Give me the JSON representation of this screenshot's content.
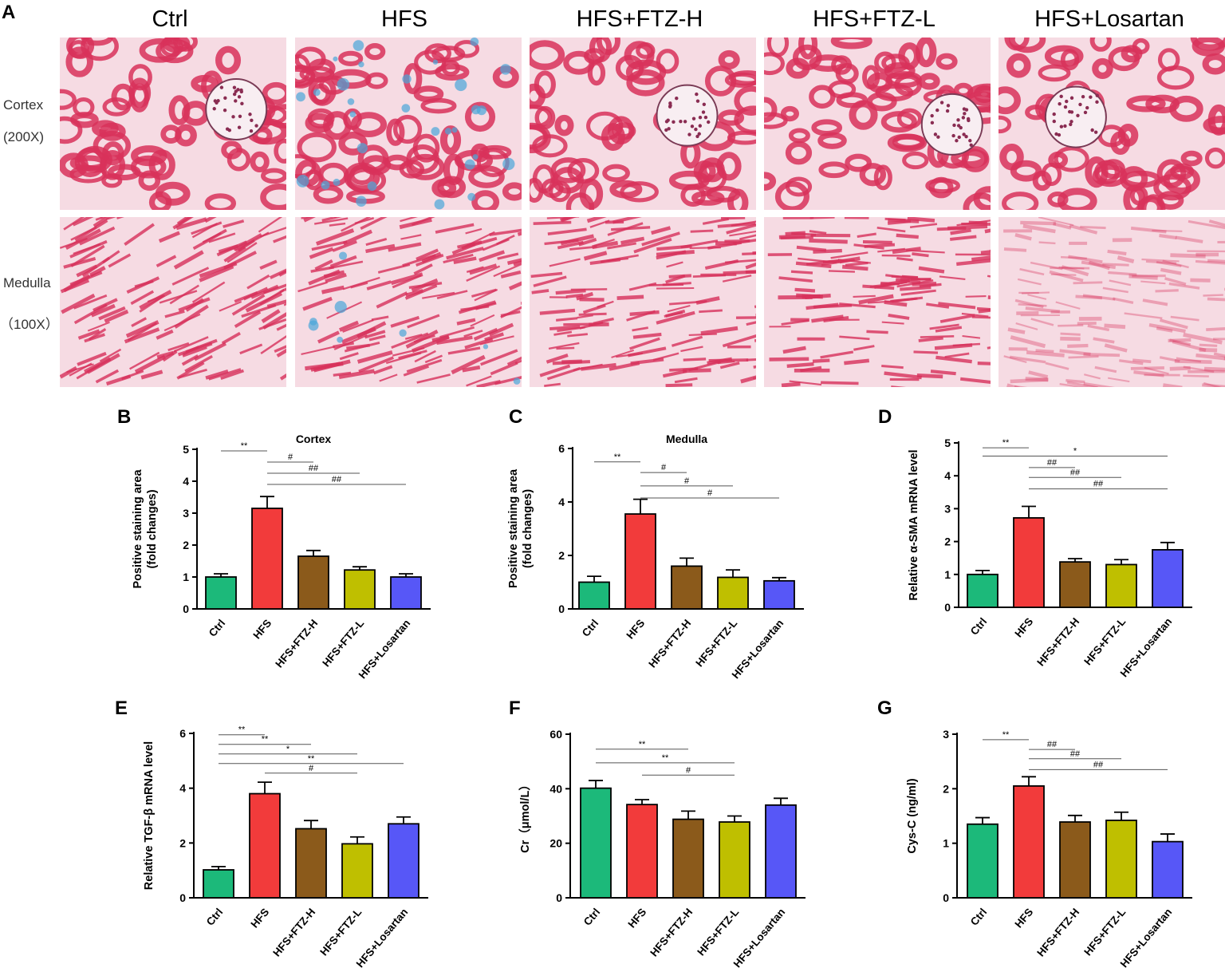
{
  "panel_a": {
    "letter": "A",
    "columns": [
      "Ctrl",
      "HFS",
      "HFS+FTZ-H",
      "HFS+FTZ-L",
      "HFS+Losartan"
    ],
    "rows": [
      {
        "name": "Cortex",
        "mag": "(200X)"
      },
      {
        "name": "Medulla",
        "mag": "（100X）"
      }
    ],
    "stain_colors": {
      "tissue": "#d8315b",
      "background": "#f6dbe3",
      "collagen": "#4aa6d8"
    }
  },
  "group_colors": [
    "#1cb97a",
    "#f23b3b",
    "#8b5a1b",
    "#bfbf00",
    "#5757f7"
  ],
  "chart_data": [
    {
      "letter": "B",
      "type": "bar",
      "title": "Cortex",
      "ylabel": "Positive staining area (fold changes)",
      "ylabel_lines": [
        "Positive staining area",
        "(fold changes)"
      ],
      "categories": [
        "Ctrl",
        "HFS",
        "HFS+FTZ-H",
        "HFS+FTZ-L",
        "HFS+Losartan"
      ],
      "values": [
        1.0,
        3.15,
        1.65,
        1.22,
        1.0
      ],
      "errors": [
        0.1,
        0.37,
        0.18,
        0.1,
        0.1
      ],
      "ylim": [
        0,
        5
      ],
      "yticks": [
        0,
        1,
        2,
        3,
        4,
        5
      ],
      "annotations": [
        {
          "from": 0,
          "to": 1,
          "level": 4.95,
          "label": "**"
        },
        {
          "from": 1,
          "to": 2,
          "level": 4.6,
          "label": "#"
        },
        {
          "from": 1,
          "to": 3,
          "level": 4.25,
          "label": "##"
        },
        {
          "from": 1,
          "to": 4,
          "level": 3.9,
          "label": "##"
        }
      ]
    },
    {
      "letter": "C",
      "type": "bar",
      "title": "Medulla",
      "ylabel": "Positive staining area (fold changes)",
      "ylabel_lines": [
        "Positive staining area",
        "(fold changes)"
      ],
      "categories": [
        "Ctrl",
        "HFS",
        "HFS+FTZ-H",
        "HFS+FTZ-L",
        "HFS+Losartan"
      ],
      "values": [
        1.0,
        3.55,
        1.6,
        1.18,
        1.05
      ],
      "errors": [
        0.22,
        0.55,
        0.3,
        0.28,
        0.12
      ],
      "ylim": [
        0,
        6
      ],
      "yticks": [
        0,
        2,
        4,
        6
      ],
      "annotations": [
        {
          "from": 0,
          "to": 1,
          "level": 5.5,
          "label": "**"
        },
        {
          "from": 1,
          "to": 2,
          "level": 5.1,
          "label": "#"
        },
        {
          "from": 1,
          "to": 3,
          "level": 4.6,
          "label": "#"
        },
        {
          "from": 1,
          "to": 4,
          "level": 4.15,
          "label": "#"
        }
      ]
    },
    {
      "letter": "D",
      "type": "bar",
      "title": "",
      "ylabel": "Relative α-SMA mRNA level",
      "ylabel_lines": [
        "Relative α-SMA mRNA level"
      ],
      "categories": [
        "Ctrl",
        "HFS",
        "HFS+FTZ-H",
        "HFS+FTZ-L",
        "HFS+Losartan"
      ],
      "values": [
        1.0,
        2.72,
        1.38,
        1.3,
        1.75
      ],
      "errors": [
        0.12,
        0.35,
        0.1,
        0.15,
        0.22
      ],
      "ylim": [
        0,
        5
      ],
      "yticks": [
        0,
        1,
        2,
        3,
        4,
        5
      ],
      "annotations": [
        {
          "from": 0,
          "to": 1,
          "level": 4.85,
          "label": "**"
        },
        {
          "from": 0,
          "to": 4,
          "level": 4.6,
          "label": "*"
        },
        {
          "from": 1,
          "to": 2,
          "level": 4.25,
          "label": "##"
        },
        {
          "from": 1,
          "to": 3,
          "level": 3.95,
          "label": "##"
        },
        {
          "from": 1,
          "to": 4,
          "level": 3.6,
          "label": "##"
        }
      ]
    },
    {
      "letter": "E",
      "type": "bar",
      "title": "",
      "ylabel": "Relative TGF-β mRNA level",
      "ylabel_lines": [
        "Relative TGF-β mRNA level"
      ],
      "categories": [
        "Ctrl",
        "HFS",
        "HFS+FTZ-H",
        "HFS+FTZ-L",
        "HFS+Losartan"
      ],
      "values": [
        1.02,
        3.8,
        2.52,
        1.97,
        2.7
      ],
      "errors": [
        0.12,
        0.42,
        0.3,
        0.25,
        0.25
      ],
      "ylim": [
        0,
        6
      ],
      "yticks": [
        0,
        2,
        4,
        6
      ],
      "annotations": [
        {
          "from": 0,
          "to": 1,
          "level": 5.95,
          "label": "**"
        },
        {
          "from": 0,
          "to": 2,
          "level": 5.6,
          "label": "**"
        },
        {
          "from": 0,
          "to": 3,
          "level": 5.25,
          "label": "*"
        },
        {
          "from": 0,
          "to": 4,
          "level": 4.9,
          "label": "**"
        },
        {
          "from": 1,
          "to": 3,
          "level": 4.55,
          "label": "#"
        }
      ]
    },
    {
      "letter": "F",
      "type": "bar",
      "title": "",
      "ylabel": "Cr（μmol/L）",
      "ylabel_lines": [
        "Cr（μmol/L）"
      ],
      "categories": [
        "Ctrl",
        "HFS",
        "HFS+FTZ-H",
        "HFS+FTZ-L",
        "HFS+Losartan"
      ],
      "values": [
        40.2,
        34.2,
        28.8,
        27.8,
        34.0
      ],
      "errors": [
        2.8,
        1.8,
        3.0,
        2.2,
        2.5
      ],
      "ylim": [
        0,
        60
      ],
      "yticks": [
        0,
        20,
        40,
        60
      ],
      "annotations": [
        {
          "from": 0,
          "to": 2,
          "level": 54.5,
          "label": "**"
        },
        {
          "from": 0,
          "to": 3,
          "level": 49.5,
          "label": "**"
        },
        {
          "from": 1,
          "to": 3,
          "level": 45.0,
          "label": "#"
        }
      ]
    },
    {
      "letter": "G",
      "type": "bar",
      "title": "",
      "ylabel": "Cys-C (ng/ml)",
      "ylabel_lines": [
        "Cys-C (ng/ml)"
      ],
      "categories": [
        "Ctrl",
        "HFS",
        "HFS+FTZ-H",
        "HFS+FTZ-L",
        "HFS+Losartan"
      ],
      "values": [
        1.35,
        2.05,
        1.39,
        1.42,
        1.03
      ],
      "errors": [
        0.12,
        0.17,
        0.12,
        0.15,
        0.14
      ],
      "ylim": [
        0,
        3
      ],
      "yticks": [
        0,
        1,
        2,
        3
      ],
      "annotations": [
        {
          "from": 0,
          "to": 1,
          "level": 2.9,
          "label": "**"
        },
        {
          "from": 1,
          "to": 2,
          "level": 2.72,
          "label": "##"
        },
        {
          "from": 1,
          "to": 3,
          "level": 2.55,
          "label": "##"
        },
        {
          "from": 1,
          "to": 4,
          "level": 2.35,
          "label": "##"
        }
      ]
    }
  ]
}
